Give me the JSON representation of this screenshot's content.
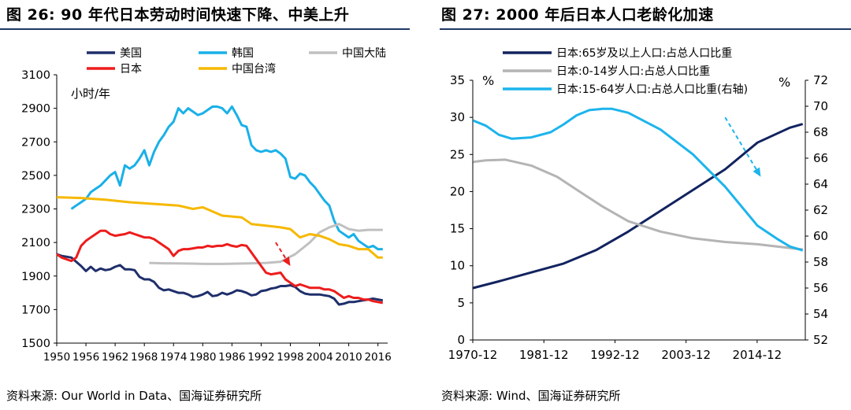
{
  "left": {
    "title": "图 26:  90 年代日本劳动时间快速下降、中美上升",
    "source": "资料来源:  Our World in Data、国海证券研究所",
    "chart_data": {
      "type": "line",
      "title": "90 年代日本劳动时间快速下降、中美上升",
      "ylabel": "小时/年",
      "xlabel": "",
      "xlim": [
        1950,
        2018
      ],
      "ylim": [
        1500,
        3100
      ],
      "y_ticks": [
        1500,
        1700,
        1900,
        2100,
        2300,
        2500,
        2700,
        2900,
        3100
      ],
      "x_ticks": [
        1950,
        1956,
        1962,
        1968,
        1974,
        1980,
        1986,
        1992,
        1998,
        2004,
        2010,
        2016
      ],
      "x_tick_labels": [
        "1950",
        "1956",
        "1962",
        "1968",
        "1974",
        "1980",
        "1986",
        "1992",
        "1998",
        "2004",
        "2010",
        "2016"
      ],
      "legend": [
        "美国",
        "韩国",
        "中国大陆",
        "日本",
        "中国台湾"
      ],
      "series": [
        {
          "name": "美国",
          "color": "#1f2f6b",
          "x": [
            1950,
            1951,
            1952,
            1953,
            1954,
            1955,
            1956,
            1957,
            1958,
            1959,
            1960,
            1961,
            1962,
            1963,
            1964,
            1965,
            1966,
            1967,
            1968,
            1969,
            1970,
            1971,
            1972,
            1973,
            1974,
            1975,
            1976,
            1977,
            1978,
            1979,
            1980,
            1981,
            1982,
            1983,
            1984,
            1985,
            1986,
            1987,
            1988,
            1989,
            1990,
            1991,
            1992,
            1993,
            1994,
            1995,
            1996,
            1997,
            1998,
            1999,
            2000,
            2001,
            2002,
            2003,
            2004,
            2005,
            2006,
            2007,
            2008,
            2009,
            2010,
            2011,
            2012,
            2013,
            2014,
            2015,
            2016,
            2017
          ],
          "values": [
            2030,
            2020,
            2015,
            2010,
            1985,
            1960,
            1930,
            1955,
            1930,
            1945,
            1935,
            1940,
            1955,
            1965,
            1940,
            1940,
            1935,
            1895,
            1880,
            1880,
            1865,
            1830,
            1815,
            1820,
            1810,
            1800,
            1800,
            1790,
            1775,
            1780,
            1790,
            1805,
            1780,
            1785,
            1800,
            1790,
            1800,
            1815,
            1810,
            1800,
            1785,
            1790,
            1810,
            1815,
            1825,
            1830,
            1840,
            1840,
            1845,
            1835,
            1810,
            1795,
            1790,
            1790,
            1790,
            1785,
            1780,
            1765,
            1730,
            1735,
            1745,
            1745,
            1750,
            1755,
            1760,
            1765,
            1760,
            1755
          ]
        },
        {
          "name": "韩国",
          "color": "#19b0e8",
          "x": [
            1953,
            1954,
            1955,
            1956,
            1957,
            1958,
            1959,
            1960,
            1961,
            1962,
            1963,
            1964,
            1965,
            1966,
            1967,
            1968,
            1969,
            1970,
            1971,
            1972,
            1973,
            1974,
            1975,
            1976,
            1977,
            1978,
            1979,
            1980,
            1981,
            1982,
            1983,
            1984,
            1985,
            1986,
            1987,
            1988,
            1989,
            1990,
            1991,
            1992,
            1993,
            1994,
            1995,
            1996,
            1997,
            1998,
            1999,
            2000,
            2001,
            2002,
            2003,
            2004,
            2005,
            2006,
            2007,
            2008,
            2009,
            2010,
            2011,
            2012,
            2013,
            2014,
            2015,
            2016,
            2017
          ],
          "values": [
            2300,
            2320,
            2340,
            2360,
            2400,
            2420,
            2440,
            2470,
            2500,
            2520,
            2440,
            2560,
            2540,
            2560,
            2600,
            2650,
            2560,
            2640,
            2700,
            2740,
            2790,
            2820,
            2900,
            2870,
            2900,
            2880,
            2860,
            2870,
            2890,
            2910,
            2910,
            2900,
            2870,
            2910,
            2860,
            2800,
            2790,
            2680,
            2650,
            2640,
            2650,
            2640,
            2650,
            2630,
            2600,
            2490,
            2480,
            2510,
            2500,
            2460,
            2430,
            2390,
            2350,
            2320,
            2230,
            2170,
            2150,
            2130,
            2150,
            2110,
            2090,
            2070,
            2080,
            2060,
            2060
          ]
        },
        {
          "name": "中国大陆",
          "color": "#c0c0c0",
          "x": [
            1969,
            1972,
            1975,
            1978,
            1981,
            1984,
            1987,
            1990,
            1993,
            1996,
            1999,
            2002,
            2004,
            2006,
            2008,
            2010,
            2012,
            2014,
            2016,
            2017
          ],
          "values": [
            1978,
            1976,
            1975,
            1974,
            1972,
            1972,
            1974,
            1976,
            1978,
            1985,
            2030,
            2100,
            2160,
            2190,
            2210,
            2180,
            2170,
            2175,
            2175,
            2175
          ]
        },
        {
          "name": "日本",
          "color": "#ee1c1c",
          "x": [
            1950,
            1951,
            1952,
            1953,
            1954,
            1955,
            1956,
            1957,
            1958,
            1959,
            1960,
            1961,
            1962,
            1963,
            1964,
            1965,
            1966,
            1967,
            1968,
            1969,
            1970,
            1971,
            1972,
            1973,
            1974,
            1975,
            1976,
            1977,
            1978,
            1979,
            1980,
            1981,
            1982,
            1983,
            1984,
            1985,
            1986,
            1987,
            1988,
            1989,
            1990,
            1991,
            1992,
            1993,
            1994,
            1995,
            1996,
            1997,
            1998,
            1999,
            2000,
            2001,
            2002,
            2003,
            2004,
            2005,
            2006,
            2007,
            2008,
            2009,
            2010,
            2011,
            2012,
            2013,
            2014,
            2015,
            2016,
            2017
          ],
          "values": [
            2030,
            2010,
            2000,
            1990,
            2010,
            2080,
            2110,
            2130,
            2150,
            2170,
            2170,
            2150,
            2140,
            2145,
            2150,
            2160,
            2150,
            2140,
            2130,
            2130,
            2120,
            2100,
            2080,
            2060,
            2020,
            2050,
            2060,
            2060,
            2065,
            2070,
            2070,
            2080,
            2075,
            2080,
            2080,
            2090,
            2080,
            2075,
            2085,
            2080,
            2040,
            2000,
            1960,
            1920,
            1910,
            1915,
            1920,
            1880,
            1860,
            1840,
            1850,
            1840,
            1830,
            1830,
            1830,
            1820,
            1820,
            1810,
            1790,
            1770,
            1780,
            1770,
            1770,
            1760,
            1760,
            1750,
            1745,
            1740
          ]
        },
        {
          "name": "中国台湾",
          "color": "#f6b800",
          "x": [
            1950,
            1955,
            1960,
            1965,
            1970,
            1975,
            1978,
            1980,
            1984,
            1988,
            1990,
            1993,
            1996,
            1998,
            2000,
            2002,
            2004,
            2006,
            2008,
            2010,
            2012,
            2014,
            2016,
            2017
          ],
          "values": [
            2370,
            2365,
            2355,
            2340,
            2330,
            2320,
            2300,
            2310,
            2260,
            2250,
            2210,
            2200,
            2190,
            2180,
            2130,
            2150,
            2140,
            2120,
            2090,
            2080,
            2060,
            2060,
            2010,
            2010
          ]
        }
      ],
      "annotations": [
        {
          "type": "dashed-arrow",
          "color": "#ee1c1c",
          "from": [
            1995,
            2100
          ],
          "to": [
            1998,
            1960
          ]
        }
      ]
    }
  },
  "right": {
    "title": "图 27:  2000 年后日本人口老龄化加速",
    "source": "资料来源:  Wind、国海证券研究所",
    "chart_data": {
      "type": "line",
      "title": "2000 年后日本人口老龄化加速",
      "xlim": [
        1970.95,
        2022.4
      ],
      "ylim": [
        0,
        35
      ],
      "y2lim": [
        52,
        72
      ],
      "left_unit": "%",
      "right_unit": "%",
      "y_ticks": [
        0,
        5,
        10,
        15,
        20,
        25,
        30,
        35
      ],
      "y2_ticks": [
        52,
        54,
        56,
        58,
        60,
        62,
        64,
        66,
        68,
        70,
        72
      ],
      "x_ticks": [
        1970.95,
        1981.95,
        1992.95,
        2003.95,
        2014.95
      ],
      "x_tick_labels": [
        "1970-12",
        "1981-12",
        "1992-12",
        "2003-12",
        "2014-12"
      ],
      "legend": [
        "日本:65岁及以上人口:占总人口比重",
        "日本:0-14岁人口:占总人口比重",
        "日本:15-64岁人口:占总人口比重(右轴)"
      ],
      "series": [
        {
          "name": "日本:65岁及以上人口:占总人口比重",
          "axis": "left",
          "color": "#12235f",
          "x": [
            1971,
            1975,
            1980,
            1985,
            1990,
            1995,
            2000,
            2005,
            2010,
            2015,
            2020,
            2022
          ],
          "values": [
            7.0,
            7.9,
            9.1,
            10.3,
            12.1,
            14.6,
            17.4,
            20.2,
            23.0,
            26.6,
            28.6,
            29.1
          ]
        },
        {
          "name": "日本:0-14岁人口:占总人口比重",
          "axis": "left",
          "color": "#b4b4b4",
          "x": [
            1971,
            1973,
            1976,
            1980,
            1984,
            1988,
            1991,
            1995,
            2000,
            2005,
            2010,
            2015,
            2020,
            2022
          ],
          "values": [
            24.0,
            24.2,
            24.3,
            23.5,
            22.0,
            19.7,
            18.0,
            16.0,
            14.6,
            13.7,
            13.2,
            12.9,
            12.4,
            12.2
          ]
        },
        {
          "name": "日本:15-64岁人口:占总人口比重(右轴)",
          "axis": "right",
          "color": "#1cb4ec",
          "x": [
            1971,
            1973,
            1975,
            1977,
            1980,
            1983,
            1985,
            1987,
            1989,
            1991,
            1992.5,
            1995,
            2000,
            2005,
            2010,
            2015,
            2018,
            2020,
            2022
          ],
          "values": [
            68.9,
            68.5,
            67.8,
            67.5,
            67.6,
            68.0,
            68.6,
            69.3,
            69.7,
            69.8,
            69.8,
            69.5,
            68.2,
            66.3,
            63.8,
            60.8,
            59.8,
            59.2,
            58.9
          ]
        }
      ],
      "annotations": [
        {
          "type": "dashed-arrow",
          "color": "#1cb4ec",
          "from": [
            2010,
            30
          ],
          "to": [
            2015.5,
            22
          ]
        }
      ]
    }
  }
}
